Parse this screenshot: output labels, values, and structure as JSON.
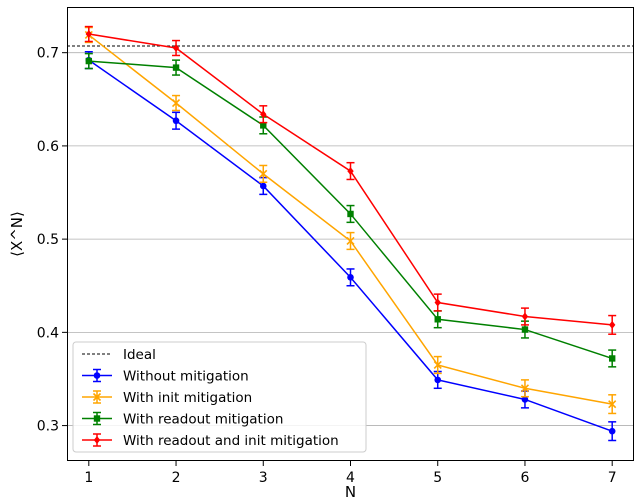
{
  "chart_data": {
    "type": "line",
    "title": "",
    "xlabel": "N",
    "ylabel": "⟨X^N⟩",
    "x": [
      1,
      2,
      3,
      4,
      5,
      6,
      7
    ],
    "xticks": [
      "1",
      "2",
      "3",
      "4",
      "5",
      "6",
      "7"
    ],
    "yticks": [
      "0.3",
      "0.4",
      "0.5",
      "0.6",
      "0.7"
    ],
    "xlim": [
      0.75,
      7.25
    ],
    "ylim": [
      0.262,
      0.749
    ],
    "grid": "horizontal",
    "legend_position": "lower-left",
    "ideal": {
      "name": "Ideal",
      "value": 0.7071,
      "color": "#000000",
      "style": "dashed"
    },
    "series": [
      {
        "name": "Without mitigation",
        "color": "#0000ff",
        "marker": "circle",
        "values": [
          0.692,
          0.627,
          0.557,
          0.459,
          0.349,
          0.328,
          0.294
        ],
        "errors": [
          0.009,
          0.009,
          0.009,
          0.009,
          0.009,
          0.009,
          0.01
        ]
      },
      {
        "name": "With init mitigation",
        "color": "#ffa500",
        "marker": "x",
        "values": [
          0.719,
          0.646,
          0.57,
          0.498,
          0.365,
          0.34,
          0.323
        ],
        "errors": [
          0.008,
          0.008,
          0.009,
          0.009,
          0.009,
          0.009,
          0.01
        ]
      },
      {
        "name": "With readout mitigation",
        "color": "#008000",
        "marker": "square",
        "values": [
          0.691,
          0.684,
          0.622,
          0.527,
          0.414,
          0.403,
          0.372
        ],
        "errors": [
          0.008,
          0.008,
          0.009,
          0.009,
          0.009,
          0.009,
          0.009
        ]
      },
      {
        "name": "With readout and init mitigation",
        "color": "#ff0000",
        "marker": "diamond",
        "values": [
          0.72,
          0.705,
          0.634,
          0.573,
          0.432,
          0.417,
          0.408
        ],
        "errors": [
          0.008,
          0.008,
          0.009,
          0.009,
          0.009,
          0.009,
          0.01
        ]
      }
    ]
  }
}
